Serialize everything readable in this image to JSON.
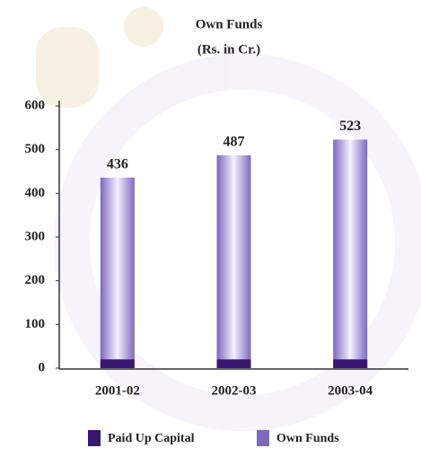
{
  "chart_data": {
    "type": "bar",
    "title": "Own Funds",
    "subtitle": "(Rs. in Cr.)",
    "categories": [
      "2001-02",
      "2002-03",
      "2003-04"
    ],
    "series": [
      {
        "name": "Paid Up Capital",
        "color": "#3a1670",
        "values": [
          20,
          20,
          20
        ]
      },
      {
        "name": "Own Funds",
        "color": "#7d68c0",
        "values": [
          436,
          487,
          523
        ]
      }
    ],
    "ylim": [
      0,
      600
    ],
    "yticks": [
      0,
      100,
      200,
      300,
      400,
      500,
      600
    ]
  }
}
